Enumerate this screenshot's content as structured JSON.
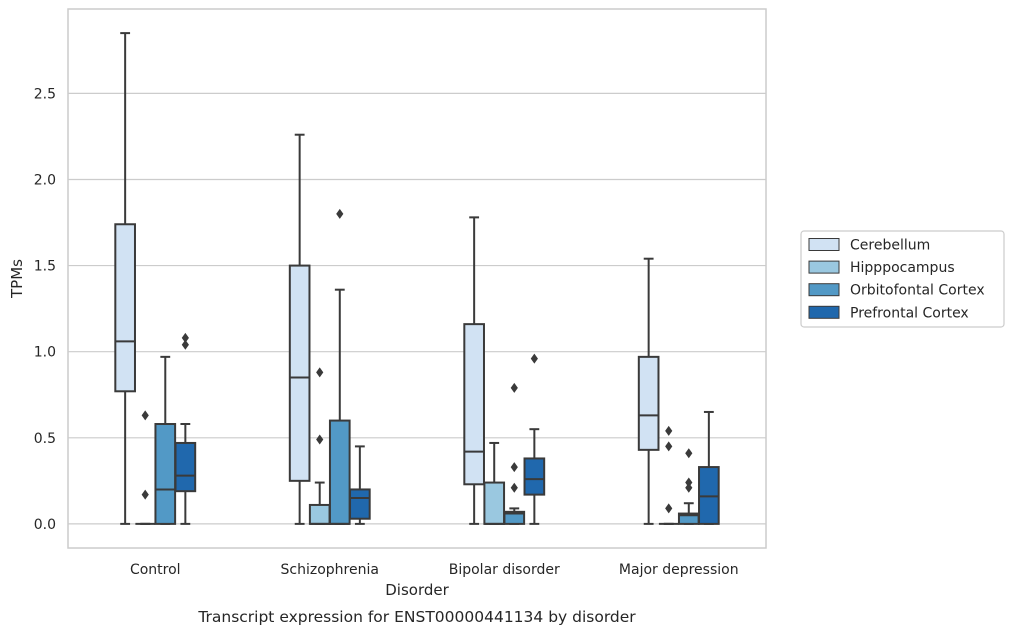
{
  "chart_data": {
    "type": "box",
    "xlabel": "Disorder",
    "ylabel": "TPMs",
    "caption": "Transcript expression for ENST00000441134 by disorder",
    "ylim": [
      -0.14,
      2.99
    ],
    "yticks": [
      0.0,
      0.5,
      1.0,
      1.5,
      2.0,
      2.5
    ],
    "ytick_labels": [
      "0.0",
      "0.5",
      "1.0",
      "1.5",
      "2.0",
      "2.5"
    ],
    "categories": [
      "Control",
      "Schizophrenia",
      "Bipolar disorder",
      "Major depression"
    ],
    "grid": "horizontal",
    "legend_position": "right",
    "series": [
      {
        "name": "Cerebellum",
        "color": "#d1e2f3",
        "boxes": [
          {
            "whislo": 0.0,
            "q1": 0.77,
            "med": 1.06,
            "q3": 1.74,
            "whishi": 2.85,
            "fliers": []
          },
          {
            "whislo": 0.0,
            "q1": 0.25,
            "med": 0.85,
            "q3": 1.5,
            "whishi": 2.26,
            "fliers": []
          },
          {
            "whislo": 0.0,
            "q1": 0.23,
            "med": 0.42,
            "q3": 1.16,
            "whishi": 1.78,
            "fliers": []
          },
          {
            "whislo": 0.0,
            "q1": 0.43,
            "med": 0.63,
            "q3": 0.97,
            "whishi": 1.54,
            "fliers": []
          }
        ]
      },
      {
        "name": "Hipppocampus",
        "color": "#9ac8e0",
        "boxes": [
          {
            "whislo": 0.0,
            "q1": 0.0,
            "med": 0.0,
            "q3": 0.0,
            "whishi": 0.0,
            "fliers": [
              0.63,
              0.17
            ]
          },
          {
            "whislo": 0.0,
            "q1": 0.0,
            "med": 0.0,
            "q3": 0.11,
            "whishi": 0.24,
            "fliers": [
              0.88,
              0.49
            ]
          },
          {
            "whislo": 0.0,
            "q1": 0.0,
            "med": 0.0,
            "q3": 0.24,
            "whishi": 0.47,
            "fliers": []
          },
          {
            "whislo": 0.0,
            "q1": 0.0,
            "med": 0.0,
            "q3": 0.0,
            "whishi": 0.0,
            "fliers": [
              0.54,
              0.45,
              0.09
            ]
          }
        ]
      },
      {
        "name": "Orbitofontal Cortex",
        "color": "#5299c6",
        "boxes": [
          {
            "whislo": 0.0,
            "q1": 0.0,
            "med": 0.2,
            "q3": 0.58,
            "whishi": 0.97,
            "fliers": []
          },
          {
            "whislo": 0.0,
            "q1": 0.0,
            "med": 0.0,
            "q3": 0.6,
            "whishi": 1.36,
            "fliers": [
              1.8
            ]
          },
          {
            "whislo": 0.0,
            "q1": 0.0,
            "med": 0.06,
            "q3": 0.07,
            "whishi": 0.09,
            "fliers": [
              0.79,
              0.33,
              0.21
            ]
          },
          {
            "whislo": 0.0,
            "q1": 0.0,
            "med": 0.05,
            "q3": 0.06,
            "whishi": 0.12,
            "fliers": [
              0.41,
              0.24,
              0.21
            ]
          }
        ]
      },
      {
        "name": "Prefrontal Cortex",
        "color": "#2068ad",
        "boxes": [
          {
            "whislo": 0.0,
            "q1": 0.19,
            "med": 0.28,
            "q3": 0.47,
            "whishi": 0.58,
            "fliers": [
              1.08,
              1.04
            ]
          },
          {
            "whislo": 0.0,
            "q1": 0.03,
            "med": 0.15,
            "q3": 0.2,
            "whishi": 0.45,
            "fliers": []
          },
          {
            "whislo": 0.0,
            "q1": 0.17,
            "med": 0.26,
            "q3": 0.38,
            "whishi": 0.55,
            "fliers": [
              0.96
            ]
          },
          {
            "whislo": 0.0,
            "q1": 0.0,
            "med": 0.16,
            "q3": 0.33,
            "whishi": 0.65,
            "fliers": []
          }
        ]
      }
    ]
  }
}
